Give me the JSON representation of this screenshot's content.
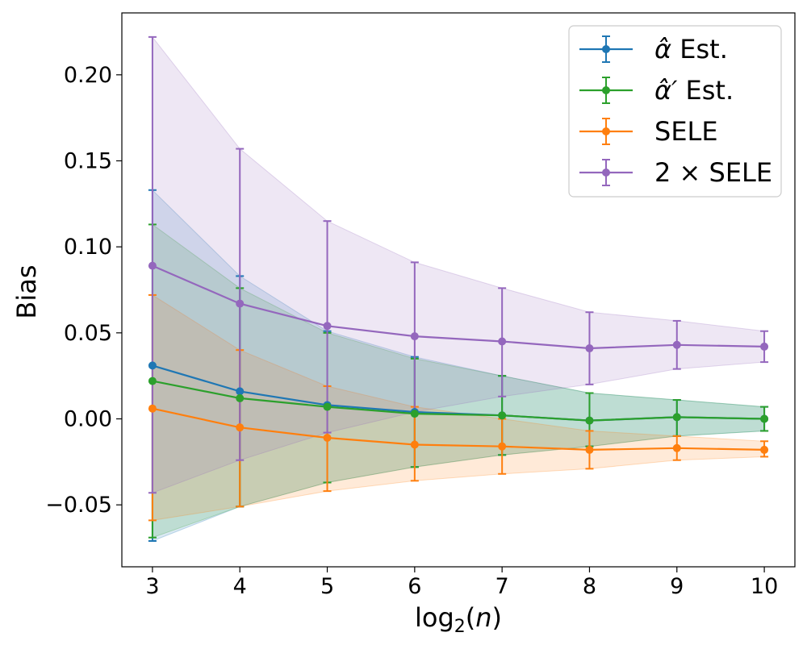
{
  "chart_data": {
    "type": "line",
    "title": "",
    "xlabel": "log₂(n)",
    "ylabel": "Bias",
    "x": [
      3,
      4,
      5,
      6,
      7,
      8,
      9,
      10
    ],
    "xlim": [
      2.65,
      10.35
    ],
    "ylim": [
      -0.086,
      0.236
    ],
    "xticks": [
      3,
      4,
      5,
      6,
      7,
      8,
      9,
      10
    ],
    "xtick_labels": [
      "3",
      "4",
      "5",
      "6",
      "7",
      "8",
      "9",
      "10"
    ],
    "yticks": [
      -0.05,
      0.0,
      0.05,
      0.1,
      0.15,
      0.2
    ],
    "ytick_labels": [
      "−0.05",
      "0.00",
      "0.05",
      "0.10",
      "0.15",
      "0.20"
    ],
    "legend_position": "top-right",
    "series": [
      {
        "name": "α̂ Est.",
        "legend_label": {
          "math": "α̂",
          "text": " Est."
        },
        "color": "#1f77b4",
        "values": [
          0.031,
          0.016,
          0.008,
          0.004,
          0.002,
          -0.001,
          0.001,
          0.0
        ],
        "lower": [
          -0.071,
          -0.051,
          -0.037,
          -0.028,
          -0.021,
          -0.016,
          -0.01,
          -0.007
        ],
        "upper": [
          0.133,
          0.083,
          0.051,
          0.036,
          0.025,
          0.015,
          0.011,
          0.007
        ]
      },
      {
        "name": "α̂′ Est.",
        "legend_label": {
          "math": "α̂′",
          "text": " Est."
        },
        "color": "#2ca02c",
        "values": [
          0.022,
          0.012,
          0.007,
          0.003,
          0.002,
          -0.001,
          0.001,
          0.0
        ],
        "lower": [
          -0.069,
          -0.051,
          -0.037,
          -0.028,
          -0.021,
          -0.016,
          -0.01,
          -0.007
        ],
        "upper": [
          0.113,
          0.076,
          0.05,
          0.035,
          0.025,
          0.015,
          0.011,
          0.007
        ]
      },
      {
        "name": "SELE",
        "legend_label": {
          "math": "",
          "text": "SELE"
        },
        "color": "#ff7f0e",
        "values": [
          0.006,
          -0.005,
          -0.011,
          -0.015,
          -0.016,
          -0.018,
          -0.017,
          -0.018
        ],
        "lower": [
          -0.059,
          -0.051,
          -0.042,
          -0.036,
          -0.032,
          -0.029,
          -0.024,
          -0.022
        ],
        "upper": [
          0.072,
          0.04,
          0.019,
          0.007,
          0.0,
          -0.007,
          -0.01,
          -0.013
        ]
      },
      {
        "name": "2 × SELE",
        "legend_label": {
          "math": "",
          "text": "2 × SELE"
        },
        "color": "#9467bd",
        "values": [
          0.089,
          0.067,
          0.054,
          0.048,
          0.045,
          0.041,
          0.043,
          0.042
        ],
        "lower": [
          -0.043,
          -0.024,
          -0.008,
          0.004,
          0.013,
          0.02,
          0.029,
          0.033
        ],
        "upper": [
          0.222,
          0.157,
          0.115,
          0.091,
          0.076,
          0.062,
          0.057,
          0.051
        ]
      }
    ]
  }
}
